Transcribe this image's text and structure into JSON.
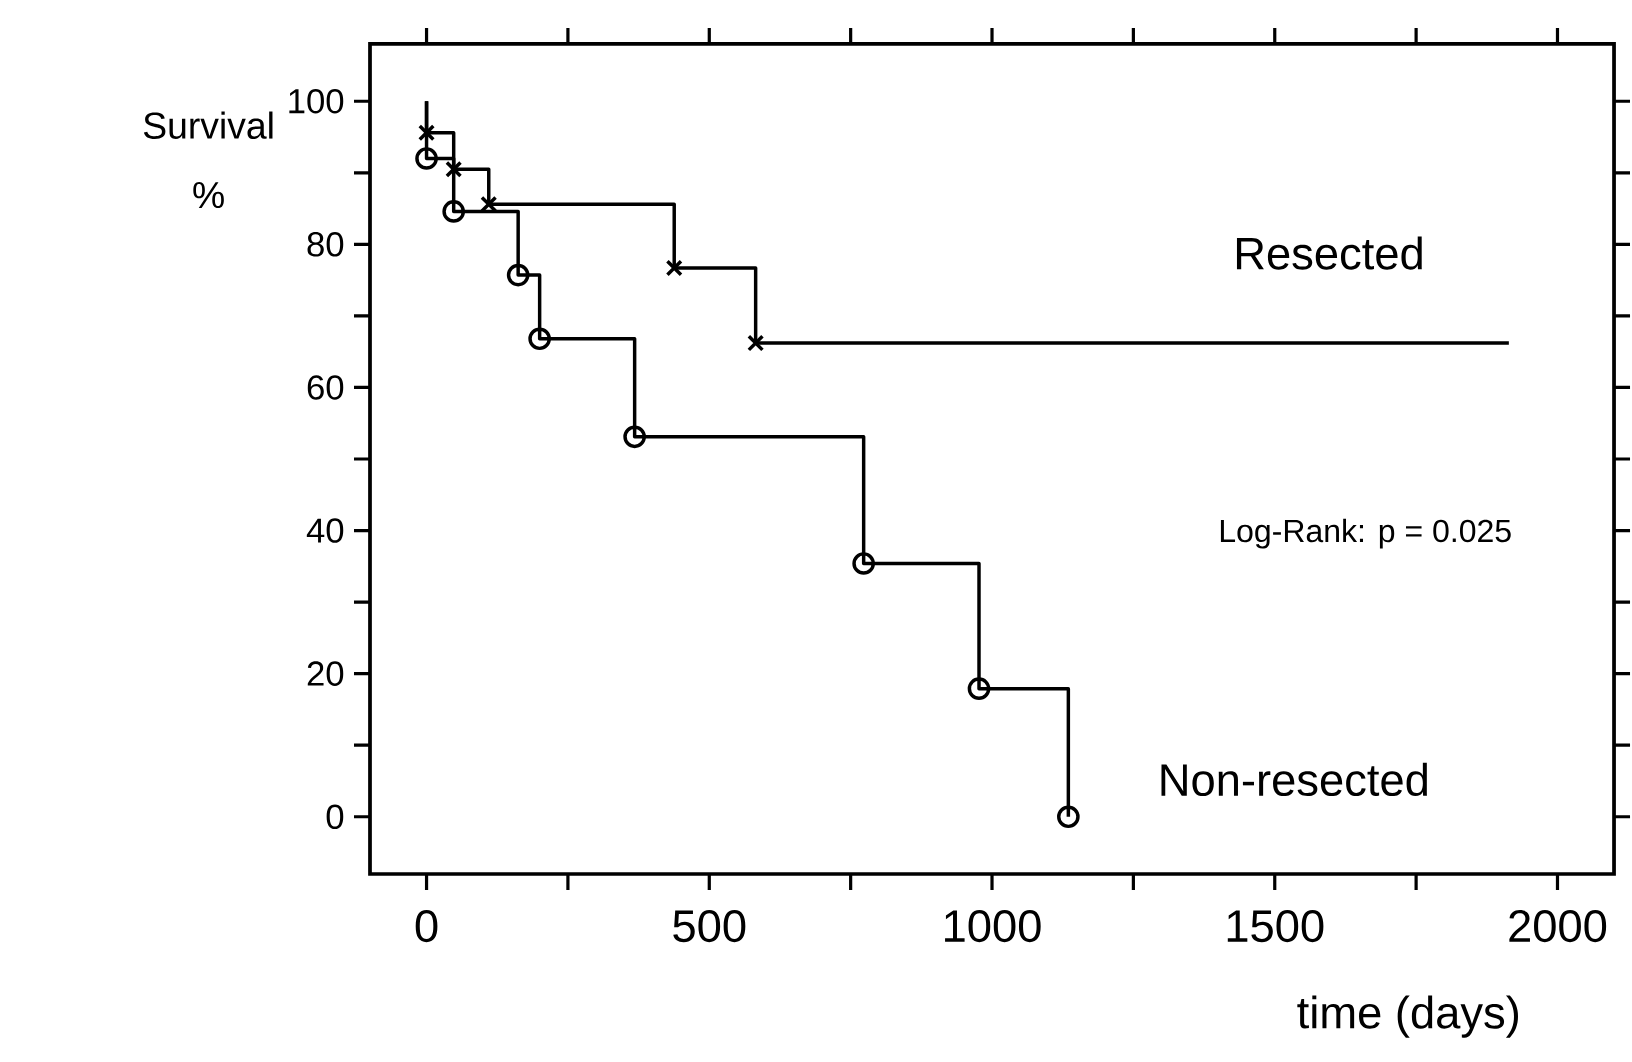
{
  "chart_data": {
    "type": "step",
    "xlabel": "time (days)",
    "ylabel": "Survival %",
    "annotations": [
      "Log-Rank: p = 0.025"
    ],
    "xlim": [
      -100,
      2100
    ],
    "ylim": [
      -8,
      108
    ],
    "xticks": [
      0,
      {
        "value": 250,
        "label": null
      },
      500,
      {
        "value": 750,
        "label": null
      },
      1000,
      {
        "value": 1250,
        "label": null
      },
      1500,
      {
        "value": 1750,
        "label": null
      },
      2000
    ],
    "yticks": [
      0,
      {
        "value": 10,
        "label": null
      },
      20,
      {
        "value": 30,
        "label": null
      },
      40,
      {
        "value": 50,
        "label": null
      },
      60,
      {
        "value": 70,
        "label": null
      },
      80,
      {
        "value": 90,
        "label": null
      },
      100
    ],
    "series": [
      {
        "name": "Resected",
        "color": "#000000",
        "marker": "cross",
        "x": [
          0,
          0,
          48,
          110,
          438,
          582,
          1914
        ],
        "values": [
          100,
          95.6,
          90.5,
          85.6,
          76.7,
          66.2,
          66.2
        ]
      },
      {
        "name": "Non-resected",
        "color": "#000000",
        "marker": "circle",
        "x": [
          0,
          0,
          48,
          162,
          200,
          368,
          773,
          977,
          1135
        ],
        "values": [
          100,
          92,
          84.6,
          75.7,
          66.8,
          53.1,
          35.4,
          17.9,
          0
        ]
      }
    ]
  }
}
